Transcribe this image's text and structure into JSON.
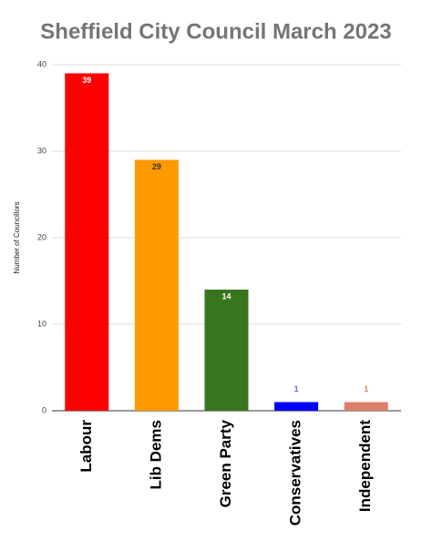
{
  "chart_data": {
    "type": "bar",
    "title": "Sheffield City Council March 2023",
    "y_label": "Number of Councillors",
    "categories": [
      "Labour",
      "Lib Dems",
      "Green Party",
      "Conservatives",
      "Independent"
    ],
    "values": [
      39,
      29,
      14,
      1,
      1
    ],
    "colors": [
      "#ff0000",
      "#ff9900",
      "#38761d",
      "#0000ff",
      "#dd7e6b"
    ],
    "value_label_colors": [
      "#ffffff",
      "#333333",
      "#ffffff",
      "#6666ff",
      "#dd7e6b"
    ],
    "ylim": [
      0,
      40
    ],
    "yticks": [
      0,
      10,
      20,
      30,
      40
    ],
    "grid": true
  }
}
